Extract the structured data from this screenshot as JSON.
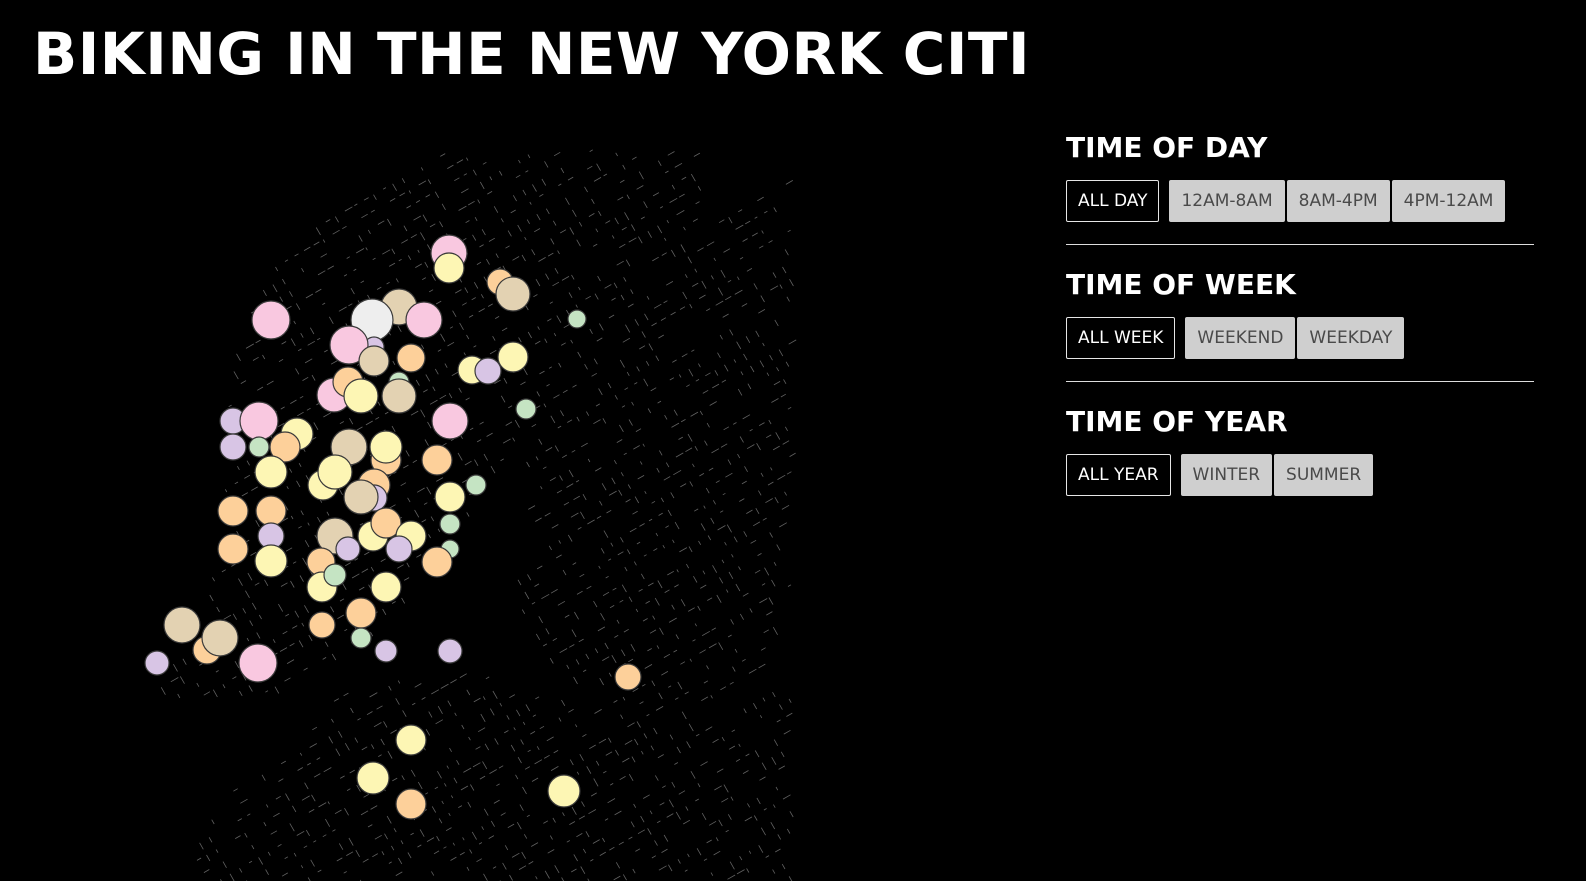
{
  "page": {
    "title": "BIKING IN THE NEW YORK CITI"
  },
  "map": {
    "background_color": "#000000",
    "street_color": "#ffffff",
    "marker_palette": [
      "#f9c8e0",
      "#fdf6b4",
      "#fdd09a",
      "#e3d2b2",
      "#d8c5e5",
      "#c5e4c3",
      "#eeeeee"
    ]
  },
  "controls": {
    "time_of_day": {
      "heading": "TIME OF DAY",
      "active": "ALL DAY",
      "options": [
        "12AM-8AM",
        "8AM-4PM",
        "4PM-12AM"
      ]
    },
    "time_of_week": {
      "heading": "TIME OF WEEK",
      "active": "ALL WEEK",
      "options": [
        "WEEKEND",
        "WEEKDAY"
      ]
    },
    "time_of_year": {
      "heading": "TIME OF YEAR",
      "active": "ALL YEAR",
      "options": [
        "WINTER",
        "SUMMER"
      ]
    }
  }
}
